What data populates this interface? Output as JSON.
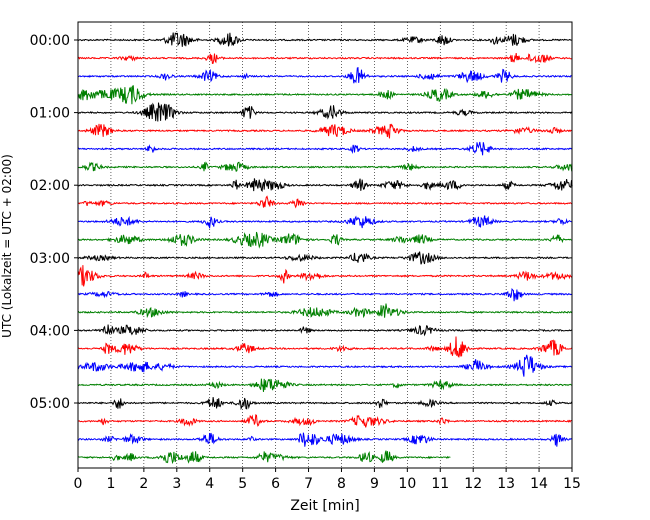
{
  "chart_data": {
    "type": "line",
    "title": "",
    "xlabel": "Zeit  [min]",
    "ylabel": "UTC (Lokalzeit = UTC + 02:00)",
    "xlim": [
      0,
      15
    ],
    "x_ticks": [
      0,
      1,
      2,
      3,
      4,
      5,
      6,
      7,
      8,
      9,
      10,
      11,
      12,
      13,
      14,
      15
    ],
    "x_tick_labels": [
      "0",
      "1",
      "2",
      "3",
      "4",
      "5",
      "6",
      "7",
      "8",
      "9",
      "10",
      "11",
      "12",
      "13",
      "14",
      "15"
    ],
    "y_tick_labels": [
      "00:00",
      "01:00",
      "02:00",
      "03:00",
      "04:00",
      "05:00"
    ],
    "vertical_grid": true,
    "line_colors": [
      "#000000",
      "#ff0000",
      "#0000ff",
      "#008000"
    ],
    "traces": [
      {
        "start": "00:00",
        "end_min": 15,
        "color": "#000000"
      },
      {
        "start": "00:15",
        "end_min": 15,
        "color": "#ff0000"
      },
      {
        "start": "00:30",
        "end_min": 15,
        "color": "#0000ff"
      },
      {
        "start": "00:45",
        "end_min": 15,
        "color": "#008000"
      },
      {
        "start": "01:00",
        "end_min": 15,
        "color": "#000000"
      },
      {
        "start": "01:15",
        "end_min": 15,
        "color": "#ff0000"
      },
      {
        "start": "01:30",
        "end_min": 15,
        "color": "#0000ff"
      },
      {
        "start": "01:45",
        "end_min": 15,
        "color": "#008000"
      },
      {
        "start": "02:00",
        "end_min": 15,
        "color": "#000000"
      },
      {
        "start": "02:15",
        "end_min": 15,
        "color": "#ff0000"
      },
      {
        "start": "02:30",
        "end_min": 15,
        "color": "#0000ff"
      },
      {
        "start": "02:45",
        "end_min": 15,
        "color": "#008000"
      },
      {
        "start": "03:00",
        "end_min": 15,
        "color": "#000000"
      },
      {
        "start": "03:15",
        "end_min": 15,
        "color": "#ff0000"
      },
      {
        "start": "03:30",
        "end_min": 15,
        "color": "#0000ff"
      },
      {
        "start": "03:45",
        "end_min": 15,
        "color": "#008000"
      },
      {
        "start": "04:00",
        "end_min": 15,
        "color": "#000000"
      },
      {
        "start": "04:15",
        "end_min": 15,
        "color": "#ff0000"
      },
      {
        "start": "04:30",
        "end_min": 15,
        "color": "#0000ff"
      },
      {
        "start": "04:45",
        "end_min": 15,
        "color": "#008000"
      },
      {
        "start": "05:00",
        "end_min": 15,
        "color": "#000000"
      },
      {
        "start": "05:15",
        "end_min": 15,
        "color": "#ff0000"
      },
      {
        "start": "05:30",
        "end_min": 15,
        "color": "#0000ff"
      },
      {
        "start": "05:45",
        "end_min": 11.3,
        "color": "#008000"
      }
    ]
  }
}
